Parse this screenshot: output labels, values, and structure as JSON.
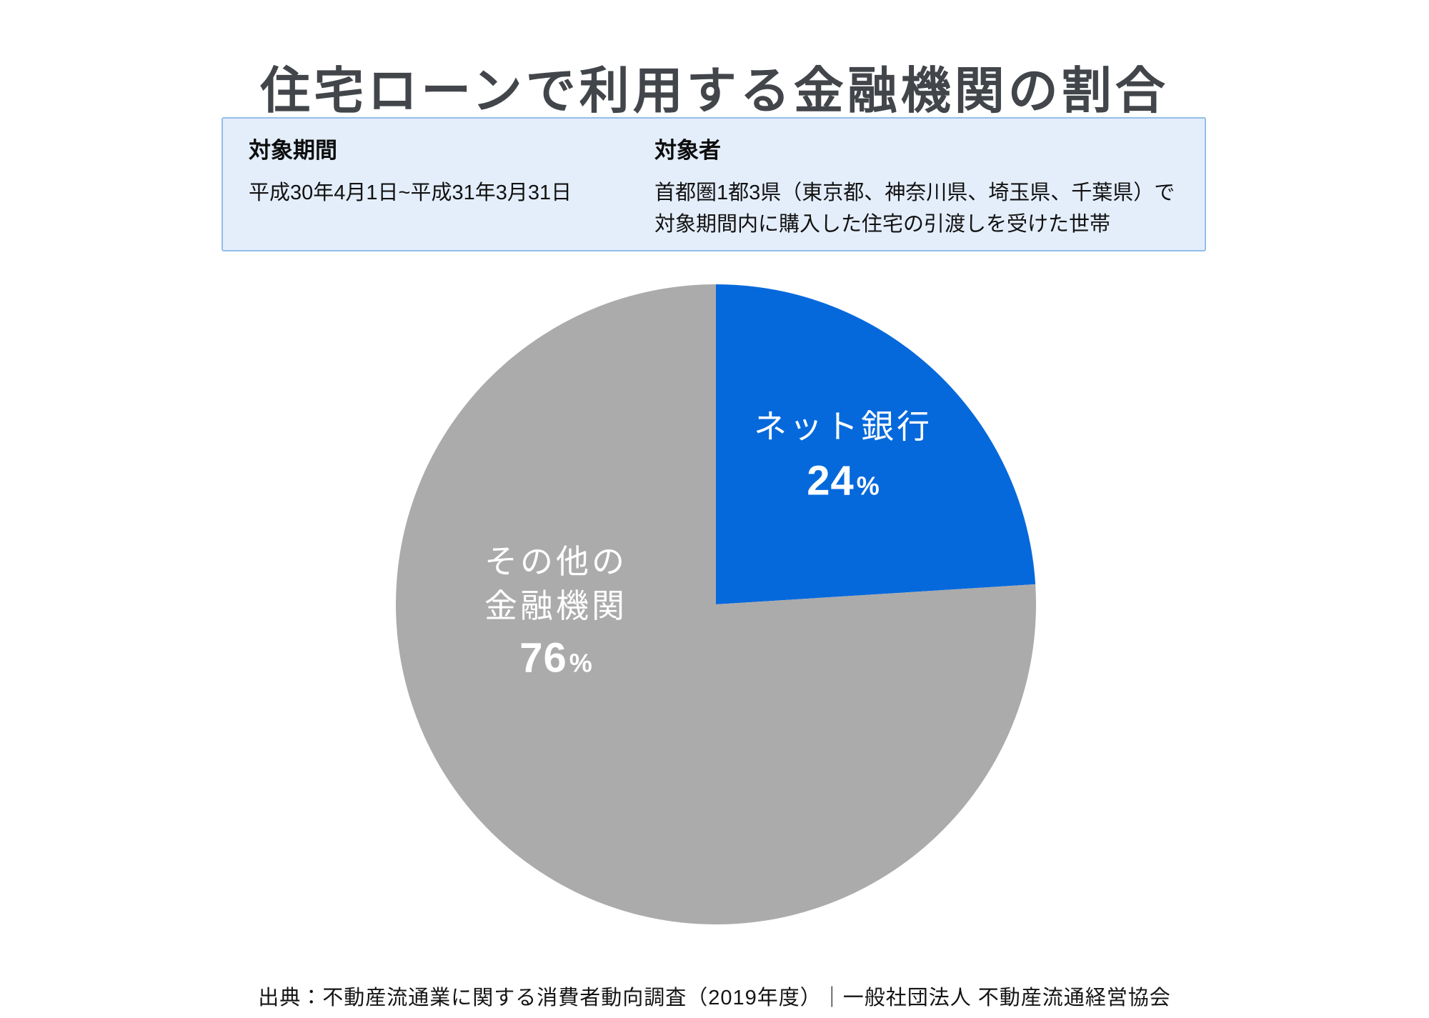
{
  "title": "住宅ローンで利用する金融機関の割合",
  "info_box": {
    "background": "#e4eefb",
    "border_color": "#94beec",
    "period": {
      "heading": "対象期間",
      "value": "平成30年4月1日~平成31年3月31日"
    },
    "audience": {
      "heading": "対象者",
      "line1": "首都圏1都3県（東京都、神奈川県、埼玉県、千葉県）で",
      "line2": "対象期間内に購入した住宅の引渡しを受けた世帯"
    }
  },
  "chart_data": {
    "type": "pie",
    "title": "住宅ローンで利用する金融機関の割合",
    "start_angle_deg": 0,
    "direction": "clockwise",
    "legend": "none",
    "data_labels": "inside",
    "total": 100,
    "slices": [
      {
        "label": "ネット銀行",
        "label_lines": [
          "ネット銀行"
        ],
        "value": 24,
        "unit": "%",
        "color": "#0569dc",
        "text_color": "#ffffff"
      },
      {
        "label": "その他の金融機関",
        "label_lines": [
          "その他の",
          "金融機関"
        ],
        "value": 76,
        "unit": "%",
        "color": "#ababab",
        "text_color": "#ffffff"
      }
    ]
  },
  "source": "出典：不動産流通業に関する消費者動向調査（2019年度）｜一般社団法人 不動産流通経営協会"
}
